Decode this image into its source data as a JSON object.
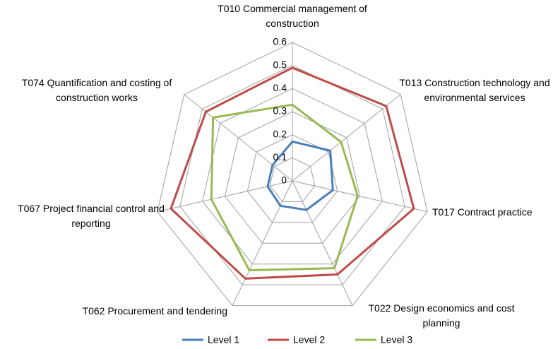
{
  "chart_data": {
    "type": "radar",
    "categories": [
      "T010 Commercial management of construction",
      "T013 Construction technology and environmental services",
      "T017 Contract practice",
      "T022 Design economics and cost planning",
      "T062 Procurement and tendering",
      "T067 Project financial control and reporting",
      "T074 Quantification and costing of construction works"
    ],
    "series": [
      {
        "name": "Level 1",
        "color": "#4a7ebb",
        "values": [
          0.17,
          0.21,
          0.18,
          0.14,
          0.12,
          0.11,
          0.11
        ]
      },
      {
        "name": "Level 2",
        "color": "#be4b48",
        "values": [
          0.49,
          0.52,
          0.54,
          0.45,
          0.47,
          0.54,
          0.48
        ]
      },
      {
        "name": "Level 3",
        "color": "#98b954",
        "values": [
          0.33,
          0.27,
          0.29,
          0.42,
          0.43,
          0.36,
          0.44
        ]
      }
    ],
    "ylim": [
      0,
      0.6
    ],
    "yticks": [
      0,
      0.1,
      0.2,
      0.3,
      0.4,
      0.5,
      0.6
    ],
    "grid": true,
    "legend": "bottom"
  }
}
